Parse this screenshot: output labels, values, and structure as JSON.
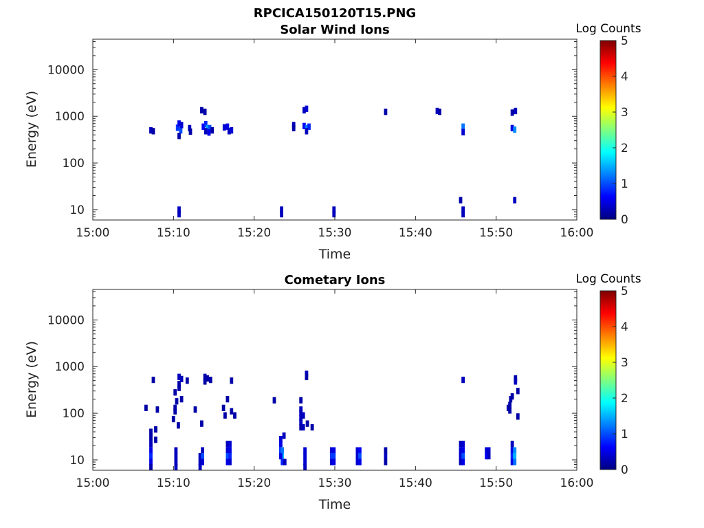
{
  "figure_title": "RPCICA150120T15.PNG",
  "colorbar": {
    "label": "Log Counts",
    "ticks": [
      "0",
      "1",
      "2",
      "3",
      "4",
      "5"
    ],
    "min": 0,
    "max": 5,
    "colormap": "jet"
  },
  "chart_data": [
    {
      "type": "heatmap",
      "title": "Solar Wind Ions",
      "xlabel": "Time",
      "ylabel": "Energy (eV)",
      "xlim": [
        "15:00",
        "16:00"
      ],
      "xticks": [
        "15:00",
        "15:10",
        "15:20",
        "15:30",
        "15:40",
        "15:50",
        "16:00"
      ],
      "yscale": "log",
      "ylim": [
        6,
        45000
      ],
      "yticks": [
        "10",
        "100",
        "1000",
        "10000"
      ],
      "points": [
        {
          "t": 7.2,
          "e": 500,
          "v": 0.3
        },
        {
          "t": 7.5,
          "e": 480,
          "v": 0.2
        },
        {
          "t": 10.5,
          "e": 570,
          "v": 0.9
        },
        {
          "t": 10.7,
          "e": 700,
          "v": 0.5
        },
        {
          "t": 10.9,
          "e": 500,
          "v": 1.0
        },
        {
          "t": 10.7,
          "e": 380,
          "v": 0.2
        },
        {
          "t": 11.0,
          "e": 650,
          "v": 0.4
        },
        {
          "t": 12.0,
          "e": 560,
          "v": 0.3
        },
        {
          "t": 12.1,
          "e": 470,
          "v": 0.2
        },
        {
          "t": 13.5,
          "e": 1350,
          "v": 0.2
        },
        {
          "t": 13.9,
          "e": 1250,
          "v": 0.2
        },
        {
          "t": 13.7,
          "e": 600,
          "v": 0.6
        },
        {
          "t": 14.0,
          "e": 680,
          "v": 0.8
        },
        {
          "t": 14.2,
          "e": 560,
          "v": 1.4
        },
        {
          "t": 14.5,
          "e": 560,
          "v": 1.0
        },
        {
          "t": 14.0,
          "e": 480,
          "v": 0.3
        },
        {
          "t": 14.4,
          "e": 450,
          "v": 0.5
        },
        {
          "t": 14.8,
          "e": 500,
          "v": 0.2
        },
        {
          "t": 16.3,
          "e": 580,
          "v": 0.4
        },
        {
          "t": 16.7,
          "e": 600,
          "v": 0.5
        },
        {
          "t": 16.9,
          "e": 480,
          "v": 0.3
        },
        {
          "t": 17.2,
          "e": 500,
          "v": 0.4
        },
        {
          "t": 24.9,
          "e": 650,
          "v": 0.3
        },
        {
          "t": 24.9,
          "e": 560,
          "v": 0.2
        },
        {
          "t": 26.2,
          "e": 1350,
          "v": 0.3
        },
        {
          "t": 26.5,
          "e": 1450,
          "v": 0.4
        },
        {
          "t": 26.2,
          "e": 620,
          "v": 0.6
        },
        {
          "t": 26.5,
          "e": 560,
          "v": 1.2
        },
        {
          "t": 26.8,
          "e": 600,
          "v": 0.8
        },
        {
          "t": 26.5,
          "e": 480,
          "v": 0.3
        },
        {
          "t": 36.3,
          "e": 1250,
          "v": 0.2
        },
        {
          "t": 42.7,
          "e": 1300,
          "v": 0.3
        },
        {
          "t": 43.0,
          "e": 1250,
          "v": 0.2
        },
        {
          "t": 45.9,
          "e": 600,
          "v": 1.2
        },
        {
          "t": 45.9,
          "e": 460,
          "v": 0.4
        },
        {
          "t": 52.0,
          "e": 560,
          "v": 0.5
        },
        {
          "t": 52.3,
          "e": 520,
          "v": 1.3
        },
        {
          "t": 52.0,
          "e": 1200,
          "v": 0.2
        },
        {
          "t": 52.4,
          "e": 1300,
          "v": 0.3
        },
        {
          "t": 10.7,
          "e": 10,
          "v": 0.3
        },
        {
          "t": 10.7,
          "e": 8,
          "v": 0.3
        },
        {
          "t": 23.4,
          "e": 10,
          "v": 0.3
        },
        {
          "t": 23.4,
          "e": 8,
          "v": 0.3
        },
        {
          "t": 29.9,
          "e": 10,
          "v": 0.3
        },
        {
          "t": 29.9,
          "e": 8,
          "v": 0.3
        },
        {
          "t": 45.6,
          "e": 16,
          "v": 0.2
        },
        {
          "t": 45.9,
          "e": 10,
          "v": 0.3
        },
        {
          "t": 45.9,
          "e": 8,
          "v": 0.3
        },
        {
          "t": 52.3,
          "e": 16,
          "v": 0.3
        }
      ]
    },
    {
      "type": "heatmap",
      "title": "Cometary Ions",
      "xlabel": "Time",
      "ylabel": "Energy (eV)",
      "xlim": [
        "15:00",
        "16:00"
      ],
      "xticks": [
        "15:00",
        "15:10",
        "15:20",
        "15:30",
        "15:40",
        "15:50",
        "16:00"
      ],
      "yscale": "log",
      "ylim": [
        6,
        45000
      ],
      "yticks": [
        "10",
        "100",
        "1000",
        "10000"
      ],
      "points": [
        {
          "t": 7.2,
          "e": 40,
          "v": 0.2
        },
        {
          "t": 7.2,
          "e": 30,
          "v": 0.2
        },
        {
          "t": 7.2,
          "e": 22,
          "v": 0.3
        },
        {
          "t": 7.2,
          "e": 16,
          "v": 0.5
        },
        {
          "t": 7.2,
          "e": 12,
          "v": 0.8
        },
        {
          "t": 7.2,
          "e": 9,
          "v": 0.5
        },
        {
          "t": 7.2,
          "e": 7,
          "v": 0.2
        },
        {
          "t": 7.5,
          "e": 520,
          "v": 0.2
        },
        {
          "t": 6.6,
          "e": 130,
          "v": 0.2
        },
        {
          "t": 8.0,
          "e": 120,
          "v": 0.2
        },
        {
          "t": 7.8,
          "e": 45,
          "v": 0.2
        },
        {
          "t": 7.8,
          "e": 27,
          "v": 0.2
        },
        {
          "t": 10.2,
          "e": 280,
          "v": 0.2
        },
        {
          "t": 10.4,
          "e": 180,
          "v": 0.2
        },
        {
          "t": 10.2,
          "e": 130,
          "v": 0.2
        },
        {
          "t": 10.2,
          "e": 110,
          "v": 0.2
        },
        {
          "t": 10.0,
          "e": 75,
          "v": 0.2
        },
        {
          "t": 10.6,
          "e": 55,
          "v": 0.2
        },
        {
          "t": 10.7,
          "e": 600,
          "v": 0.3
        },
        {
          "t": 11.0,
          "e": 540,
          "v": 0.3
        },
        {
          "t": 10.7,
          "e": 420,
          "v": 0.2
        },
        {
          "t": 10.7,
          "e": 350,
          "v": 0.2
        },
        {
          "t": 11.7,
          "e": 500,
          "v": 0.2
        },
        {
          "t": 11.0,
          "e": 200,
          "v": 0.2
        },
        {
          "t": 10.3,
          "e": 16,
          "v": 0.3
        },
        {
          "t": 10.3,
          "e": 12,
          "v": 0.3
        },
        {
          "t": 10.3,
          "e": 9,
          "v": 0.3
        },
        {
          "t": 10.3,
          "e": 7,
          "v": 0.3
        },
        {
          "t": 12.7,
          "e": 120,
          "v": 0.2
        },
        {
          "t": 13.5,
          "e": 60,
          "v": 0.2
        },
        {
          "t": 13.9,
          "e": 600,
          "v": 0.2
        },
        {
          "t": 14.2,
          "e": 560,
          "v": 0.2
        },
        {
          "t": 14.6,
          "e": 520,
          "v": 0.2
        },
        {
          "t": 13.9,
          "e": 480,
          "v": 0.2
        },
        {
          "t": 13.3,
          "e": 12,
          "v": 0.3
        },
        {
          "t": 13.3,
          "e": 9,
          "v": 0.3
        },
        {
          "t": 13.3,
          "e": 7,
          "v": 0.3
        },
        {
          "t": 13.6,
          "e": 16,
          "v": 0.3
        },
        {
          "t": 13.6,
          "e": 12,
          "v": 1.0
        },
        {
          "t": 13.6,
          "e": 9,
          "v": 0.4
        },
        {
          "t": 16.7,
          "e": 200,
          "v": 0.2
        },
        {
          "t": 16.2,
          "e": 130,
          "v": 0.2
        },
        {
          "t": 16.4,
          "e": 90,
          "v": 0.2
        },
        {
          "t": 17.2,
          "e": 110,
          "v": 0.2
        },
        {
          "t": 17.6,
          "e": 90,
          "v": 0.2
        },
        {
          "t": 17.2,
          "e": 500,
          "v": 0.2
        },
        {
          "t": 16.7,
          "e": 22,
          "v": 0.3
        },
        {
          "t": 16.7,
          "e": 16,
          "v": 0.4
        },
        {
          "t": 16.7,
          "e": 12,
          "v": 1.0
        },
        {
          "t": 16.7,
          "e": 9,
          "v": 0.5
        },
        {
          "t": 17.0,
          "e": 22,
          "v": 0.4
        },
        {
          "t": 17.0,
          "e": 16,
          "v": 0.5
        },
        {
          "t": 17.0,
          "e": 12,
          "v": 0.8
        },
        {
          "t": 17.0,
          "e": 9,
          "v": 0.4
        },
        {
          "t": 22.5,
          "e": 190,
          "v": 0.2
        },
        {
          "t": 23.3,
          "e": 28,
          "v": 0.4
        },
        {
          "t": 23.3,
          "e": 22,
          "v": 0.5
        },
        {
          "t": 23.3,
          "e": 16,
          "v": 0.9
        },
        {
          "t": 23.5,
          "e": 16,
          "v": 1.2
        },
        {
          "t": 23.5,
          "e": 12,
          "v": 1.5
        },
        {
          "t": 23.5,
          "e": 9,
          "v": 0.8
        },
        {
          "t": 23.3,
          "e": 12,
          "v": 0.5
        },
        {
          "t": 23.7,
          "e": 33,
          "v": 0.3
        },
        {
          "t": 23.8,
          "e": 9,
          "v": 0.3
        },
        {
          "t": 25.8,
          "e": 190,
          "v": 0.2
        },
        {
          "t": 25.8,
          "e": 120,
          "v": 0.3
        },
        {
          "t": 25.8,
          "e": 100,
          "v": 0.3
        },
        {
          "t": 25.8,
          "e": 80,
          "v": 0.3
        },
        {
          "t": 25.8,
          "e": 65,
          "v": 0.3
        },
        {
          "t": 25.8,
          "e": 50,
          "v": 0.2
        },
        {
          "t": 26.1,
          "e": 90,
          "v": 0.3
        },
        {
          "t": 26.1,
          "e": 50,
          "v": 0.3
        },
        {
          "t": 26.5,
          "e": 700,
          "v": 0.3
        },
        {
          "t": 26.5,
          "e": 600,
          "v": 0.2
        },
        {
          "t": 26.6,
          "e": 60,
          "v": 0.2
        },
        {
          "t": 27.2,
          "e": 50,
          "v": 0.2
        },
        {
          "t": 26.3,
          "e": 16,
          "v": 0.4
        },
        {
          "t": 26.3,
          "e": 12,
          "v": 0.4
        },
        {
          "t": 26.3,
          "e": 9,
          "v": 0.4
        },
        {
          "t": 26.3,
          "e": 7,
          "v": 0.3
        },
        {
          "t": 29.6,
          "e": 16,
          "v": 0.4
        },
        {
          "t": 29.6,
          "e": 12,
          "v": 0.9
        },
        {
          "t": 29.6,
          "e": 9,
          "v": 0.4
        },
        {
          "t": 29.9,
          "e": 16,
          "v": 0.5
        },
        {
          "t": 29.9,
          "e": 12,
          "v": 0.9
        },
        {
          "t": 29.9,
          "e": 9,
          "v": 0.5
        },
        {
          "t": 32.8,
          "e": 16,
          "v": 0.4
        },
        {
          "t": 32.8,
          "e": 12,
          "v": 0.4
        },
        {
          "t": 32.8,
          "e": 9,
          "v": 0.4
        },
        {
          "t": 33.1,
          "e": 16,
          "v": 0.6
        },
        {
          "t": 33.1,
          "e": 12,
          "v": 1.0
        },
        {
          "t": 33.1,
          "e": 9,
          "v": 0.5
        },
        {
          "t": 36.3,
          "e": 16,
          "v": 0.2
        },
        {
          "t": 36.3,
          "e": 12,
          "v": 0.3
        },
        {
          "t": 36.3,
          "e": 9,
          "v": 0.2
        },
        {
          "t": 45.6,
          "e": 22,
          "v": 0.3
        },
        {
          "t": 45.6,
          "e": 16,
          "v": 0.4
        },
        {
          "t": 45.6,
          "e": 12,
          "v": 0.4
        },
        {
          "t": 45.6,
          "e": 9,
          "v": 0.3
        },
        {
          "t": 45.9,
          "e": 22,
          "v": 0.4
        },
        {
          "t": 45.9,
          "e": 16,
          "v": 0.5
        },
        {
          "t": 45.9,
          "e": 12,
          "v": 1.0
        },
        {
          "t": 45.9,
          "e": 9,
          "v": 0.5
        },
        {
          "t": 45.9,
          "e": 520,
          "v": 0.3
        },
        {
          "t": 48.8,
          "e": 16,
          "v": 0.4
        },
        {
          "t": 48.8,
          "e": 12,
          "v": 0.6
        },
        {
          "t": 49.1,
          "e": 16,
          "v": 0.4
        },
        {
          "t": 49.1,
          "e": 12,
          "v": 0.3
        },
        {
          "t": 52.0,
          "e": 22,
          "v": 0.3
        },
        {
          "t": 52.0,
          "e": 16,
          "v": 0.5
        },
        {
          "t": 52.0,
          "e": 12,
          "v": 0.8
        },
        {
          "t": 52.0,
          "e": 9,
          "v": 0.5
        },
        {
          "t": 52.3,
          "e": 16,
          "v": 1.3
        },
        {
          "t": 52.3,
          "e": 12,
          "v": 1.5
        },
        {
          "t": 52.3,
          "e": 9,
          "v": 1.2
        },
        {
          "t": 51.8,
          "e": 200,
          "v": 0.2
        },
        {
          "t": 52.0,
          "e": 230,
          "v": 0.2
        },
        {
          "t": 51.7,
          "e": 150,
          "v": 0.2
        },
        {
          "t": 51.5,
          "e": 130,
          "v": 0.2
        },
        {
          "t": 51.7,
          "e": 115,
          "v": 0.2
        },
        {
          "t": 52.4,
          "e": 560,
          "v": 0.2
        },
        {
          "t": 52.4,
          "e": 480,
          "v": 0.3
        },
        {
          "t": 52.7,
          "e": 300,
          "v": 0.2
        },
        {
          "t": 52.7,
          "e": 85,
          "v": 0.2
        }
      ]
    }
  ]
}
